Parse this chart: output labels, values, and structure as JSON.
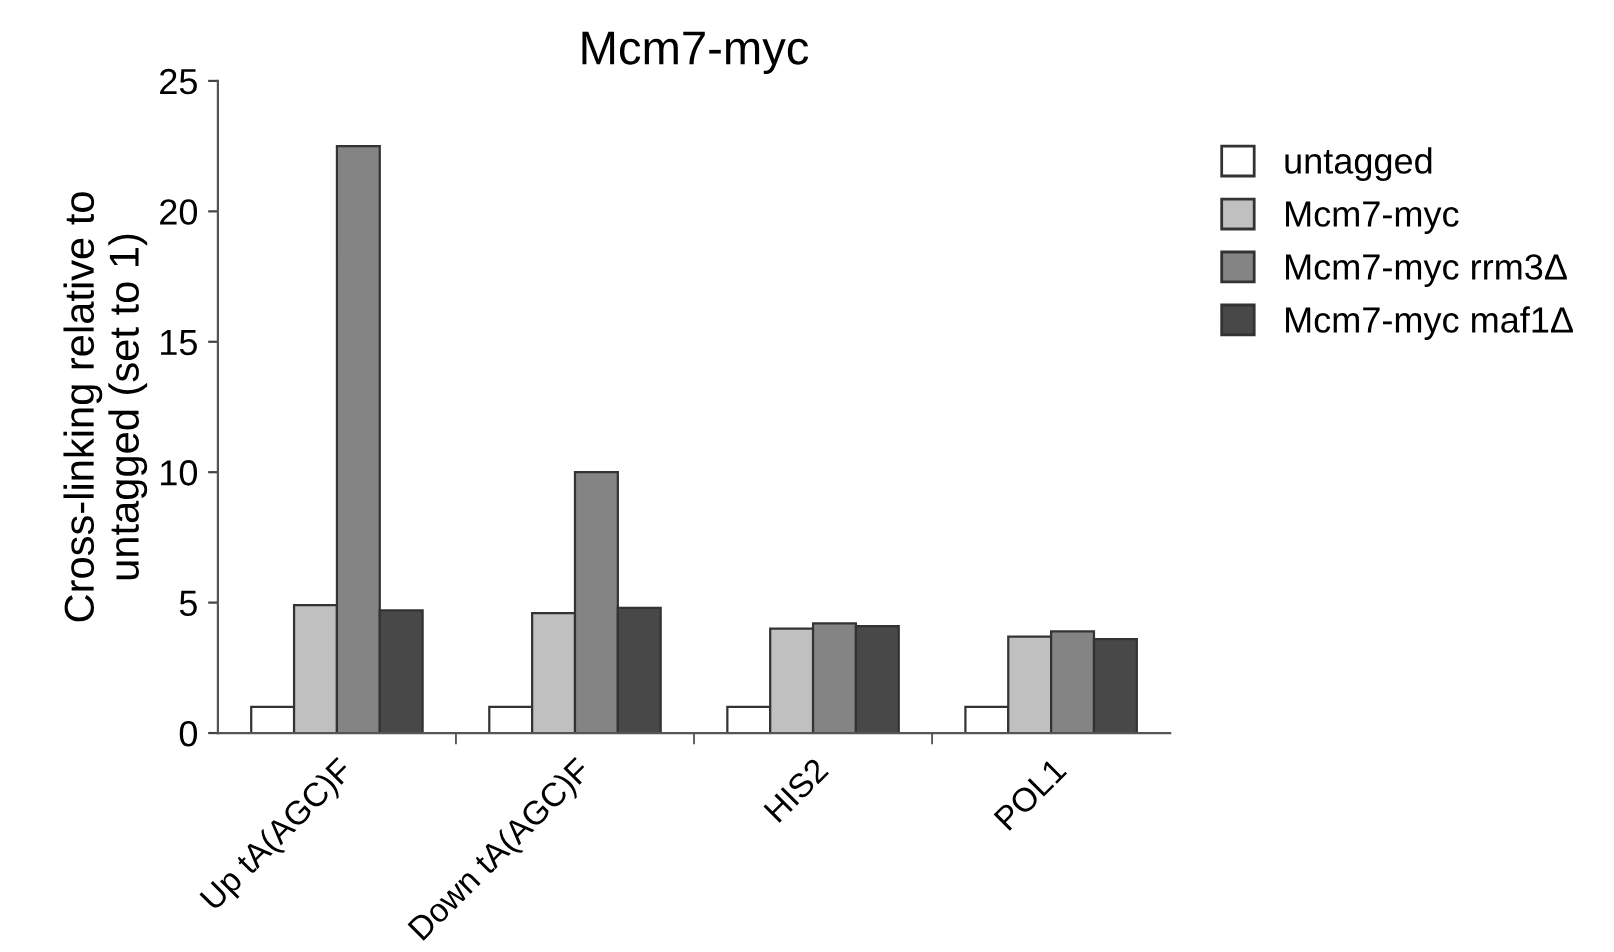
{
  "chart_data": {
    "type": "bar",
    "title": "Mcm7-myc",
    "ylabel": "Cross-linking relative to\nuntagged (set to 1)",
    "categories": [
      "Up tA(AGC)F",
      "Down tA(AGC)F",
      "HIS2",
      "POL1"
    ],
    "series": [
      {
        "name": "untagged",
        "color": "#ffffff",
        "values": [
          1,
          1,
          1,
          1
        ]
      },
      {
        "name": "Mcm7-myc",
        "color": "#c0c0c0",
        "values": [
          4.9,
          4.6,
          4.0,
          3.7
        ]
      },
      {
        "name": "Mcm7-myc rrm3Δ",
        "color": "#848484",
        "values": [
          22.5,
          10,
          4.2,
          3.9
        ]
      },
      {
        "name": "Mcm7-myc maf1Δ",
        "color": "#484848",
        "values": [
          4.7,
          4.8,
          4.1,
          3.6
        ]
      }
    ],
    "ylim": [
      0,
      25
    ],
    "yticks": [
      0,
      5,
      10,
      15,
      20,
      25
    ],
    "grid": false,
    "legend": "right"
  }
}
